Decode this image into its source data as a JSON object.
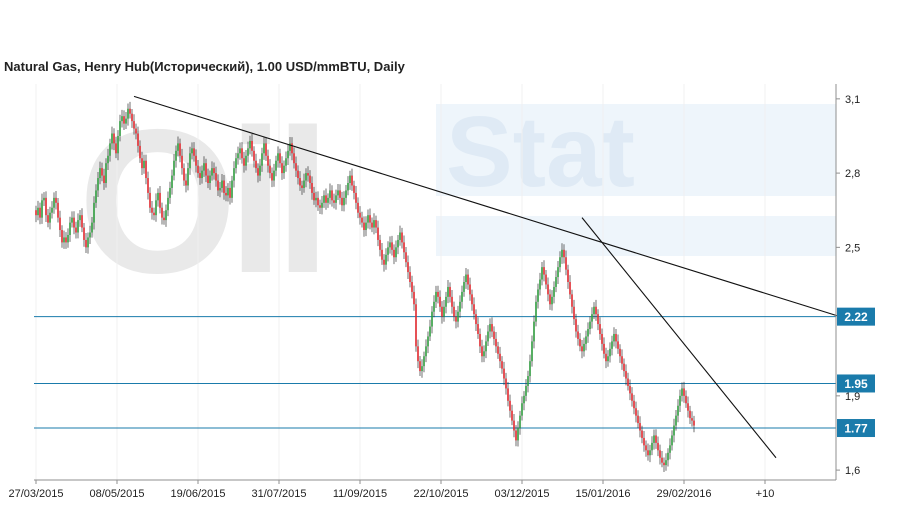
{
  "chart_data": {
    "type": "candlestick",
    "title": "Natural Gas, Henry Hub(Исторический), 1.00 USD/mmBTU, Daily",
    "watermark": {
      "left": "Oil",
      "right": "Stat"
    },
    "y_ticks": [
      {
        "value": 3.1,
        "label": "3,1"
      },
      {
        "value": 2.8,
        "label": "2,8"
      },
      {
        "value": 2.5,
        "label": "2,5"
      },
      {
        "value": 1.9,
        "label": "1,9"
      },
      {
        "value": 1.6,
        "label": "1,6"
      }
    ],
    "ylim": [
      1.56,
      3.16
    ],
    "x_ticks": [
      "27/03/2015",
      "08/05/2015",
      "19/06/2015",
      "31/07/2015",
      "11/09/2015",
      "22/10/2015",
      "03/12/2015",
      "15/01/2016",
      "29/02/2016",
      "+10"
    ],
    "levels": [
      {
        "value": 2.22,
        "label": "2.22"
      },
      {
        "value": 1.95,
        "label": "1.95"
      },
      {
        "value": 1.77,
        "label": "1.77"
      }
    ],
    "trendlines": [
      {
        "from": {
          "bar": 49,
          "value": 3.11
        },
        "to": {
          "bar": 402,
          "value": 2.22
        }
      },
      {
        "from": {
          "bar": 273,
          "value": 2.62
        },
        "to": {
          "bar": 370,
          "value": 1.65
        }
      }
    ],
    "closes": [
      2.63,
      2.66,
      2.62,
      2.69,
      2.7,
      2.63,
      2.6,
      2.64,
      2.66,
      2.7,
      2.68,
      2.62,
      2.57,
      2.52,
      2.54,
      2.52,
      2.55,
      2.6,
      2.62,
      2.58,
      2.56,
      2.61,
      2.63,
      2.58,
      2.53,
      2.5,
      2.54,
      2.56,
      2.6,
      2.68,
      2.73,
      2.78,
      2.82,
      2.79,
      2.76,
      2.84,
      2.87,
      2.92,
      2.96,
      2.92,
      2.88,
      2.95,
      3.01,
      3.03,
      3.0,
      3.02,
      3.06,
      3.04,
      3.01,
      2.98,
      2.96,
      2.91,
      2.86,
      2.82,
      2.85,
      2.78,
      2.72,
      2.66,
      2.64,
      2.63,
      2.69,
      2.72,
      2.66,
      2.62,
      2.61,
      2.65,
      2.7,
      2.74,
      2.79,
      2.85,
      2.89,
      2.92,
      2.87,
      2.82,
      2.77,
      2.75,
      2.82,
      2.88,
      2.9,
      2.87,
      2.83,
      2.8,
      2.78,
      2.81,
      2.84,
      2.79,
      2.76,
      2.79,
      2.82,
      2.8,
      2.77,
      2.73,
      2.74,
      2.77,
      2.72,
      2.71,
      2.74,
      2.7,
      2.77,
      2.82,
      2.86,
      2.88,
      2.9,
      2.86,
      2.83,
      2.87,
      2.9,
      2.93,
      2.89,
      2.85,
      2.82,
      2.79,
      2.83,
      2.88,
      2.92,
      2.87,
      2.83,
      2.8,
      2.77,
      2.81,
      2.85,
      2.88,
      2.84,
      2.8,
      2.83,
      2.86,
      2.89,
      2.92,
      2.88,
      2.84,
      2.81,
      2.78,
      2.75,
      2.74,
      2.77,
      2.8,
      2.79,
      2.76,
      2.72,
      2.69,
      2.7,
      2.67,
      2.66,
      2.68,
      2.71,
      2.68,
      2.7,
      2.73,
      2.69,
      2.68,
      2.71,
      2.73,
      2.7,
      2.67,
      2.7,
      2.73,
      2.76,
      2.79,
      2.75,
      2.72,
      2.68,
      2.64,
      2.62,
      2.6,
      2.57,
      2.6,
      2.63,
      2.6,
      2.58,
      2.61,
      2.58,
      2.53,
      2.49,
      2.45,
      2.43,
      2.47,
      2.5,
      2.52,
      2.49,
      2.46,
      2.5,
      2.53,
      2.56,
      2.52,
      2.48,
      2.44,
      2.4,
      2.36,
      2.32,
      2.27,
      2.1,
      2.04,
      2.0,
      2.02,
      2.06,
      2.1,
      2.14,
      2.18,
      2.24,
      2.28,
      2.32,
      2.3,
      2.26,
      2.22,
      2.26,
      2.3,
      2.34,
      2.3,
      2.26,
      2.22,
      2.2,
      2.24,
      2.28,
      2.32,
      2.36,
      2.39,
      2.35,
      2.31,
      2.27,
      2.23,
      2.19,
      2.15,
      2.1,
      2.06,
      2.08,
      2.12,
      2.16,
      2.19,
      2.16,
      2.13,
      2.1,
      2.07,
      2.04,
      2.01,
      1.97,
      1.93,
      1.88,
      1.84,
      1.8,
      1.76,
      1.72,
      1.77,
      1.82,
      1.87,
      1.9,
      1.94,
      1.98,
      2.04,
      2.12,
      2.2,
      2.28,
      2.33,
      2.37,
      2.42,
      2.39,
      2.35,
      2.31,
      2.27,
      2.3,
      2.34,
      2.38,
      2.42,
      2.46,
      2.49,
      2.46,
      2.41,
      2.36,
      2.31,
      2.26,
      2.21,
      2.16,
      2.13,
      2.1,
      2.08,
      2.11,
      2.14,
      2.17,
      2.2,
      2.23,
      2.26,
      2.23,
      2.19,
      2.15,
      2.11,
      2.07,
      2.04,
      2.06,
      2.09,
      2.12,
      2.15,
      2.12,
      2.09,
      2.06,
      2.03,
      2.0,
      1.97,
      1.94,
      1.91,
      1.88,
      1.85,
      1.82,
      1.79,
      1.76,
      1.73,
      1.7,
      1.68,
      1.66,
      1.68,
      1.71,
      1.74,
      1.71,
      1.68,
      1.65,
      1.63,
      1.62,
      1.64,
      1.67,
      1.7,
      1.74,
      1.78,
      1.82,
      1.86,
      1.9,
      1.93,
      1.9,
      1.87,
      1.84,
      1.81,
      1.8,
      1.78
    ]
  }
}
